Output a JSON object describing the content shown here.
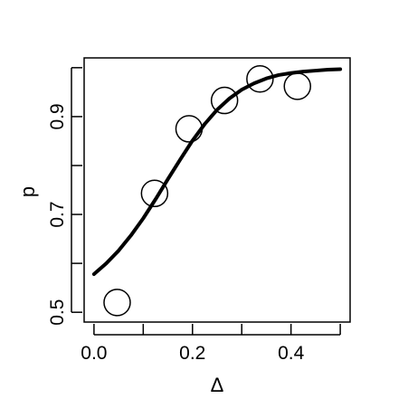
{
  "chart_data": {
    "type": "scatter",
    "title": "",
    "xlabel": "Δ",
    "ylabel": "p",
    "xlim": [
      -0.02,
      0.52
    ],
    "ylim": [
      0.48,
      1.02
    ],
    "x_ticks": [
      0.0,
      0.1,
      0.2,
      0.3,
      0.4,
      0.5
    ],
    "x_tick_labels": [
      "0.0",
      "",
      "0.2",
      "",
      "0.4",
      ""
    ],
    "y_ticks": [
      0.5,
      0.6,
      0.7,
      0.8,
      0.9,
      1.0
    ],
    "y_tick_labels": [
      "0.5",
      "",
      "0.7",
      "",
      "0.9",
      ""
    ],
    "grid": false,
    "points": [
      {
        "x": 0.047,
        "y": 0.52
      },
      {
        "x": 0.123,
        "y": 0.743
      },
      {
        "x": 0.193,
        "y": 0.875
      },
      {
        "x": 0.265,
        "y": 0.933
      },
      {
        "x": 0.337,
        "y": 0.977
      },
      {
        "x": 0.413,
        "y": 0.962
      }
    ],
    "curve": {
      "x": [
        0.0,
        0.025,
        0.05,
        0.075,
        0.1,
        0.125,
        0.15,
        0.175,
        0.2,
        0.225,
        0.25,
        0.275,
        0.3,
        0.325,
        0.35,
        0.375,
        0.4,
        0.425,
        0.45,
        0.475,
        0.5
      ],
      "y": [
        0.578,
        0.6,
        0.626,
        0.657,
        0.692,
        0.731,
        0.772,
        0.812,
        0.851,
        0.885,
        0.914,
        0.937,
        0.955,
        0.968,
        0.978,
        0.985,
        0.989,
        0.992,
        0.994,
        0.996,
        0.997
      ]
    }
  }
}
